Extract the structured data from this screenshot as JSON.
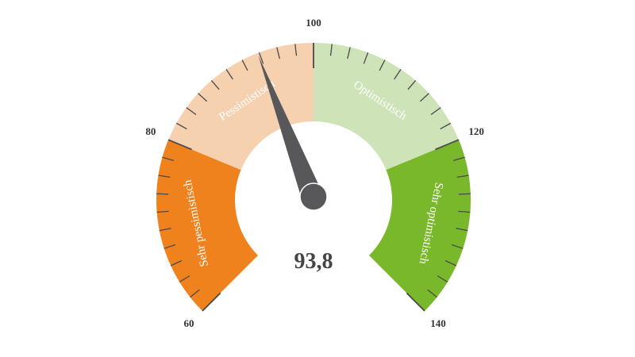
{
  "chart_data": {
    "type": "gauge",
    "min": 60,
    "max": 140,
    "value": 93.8,
    "value_label": "93,8",
    "major_ticks": [
      "60",
      "80",
      "100",
      "120",
      "140"
    ],
    "minor_tick_step": 2,
    "bands": [
      {
        "from": 60,
        "to": 80,
        "label": "Sehr pessimistisch",
        "color": "#F0821E"
      },
      {
        "from": 80,
        "to": 100,
        "label": "Pessimistisch",
        "color": "#F5D1AF"
      },
      {
        "from": 100,
        "to": 120,
        "label": "Optimistisch",
        "color": "#CEE3B7"
      },
      {
        "from": 120,
        "to": 140,
        "label": "Sehr optimistisch",
        "color": "#78B82A"
      }
    ],
    "needle_color": "#58585A",
    "tick_color": "#4A4A4A"
  }
}
